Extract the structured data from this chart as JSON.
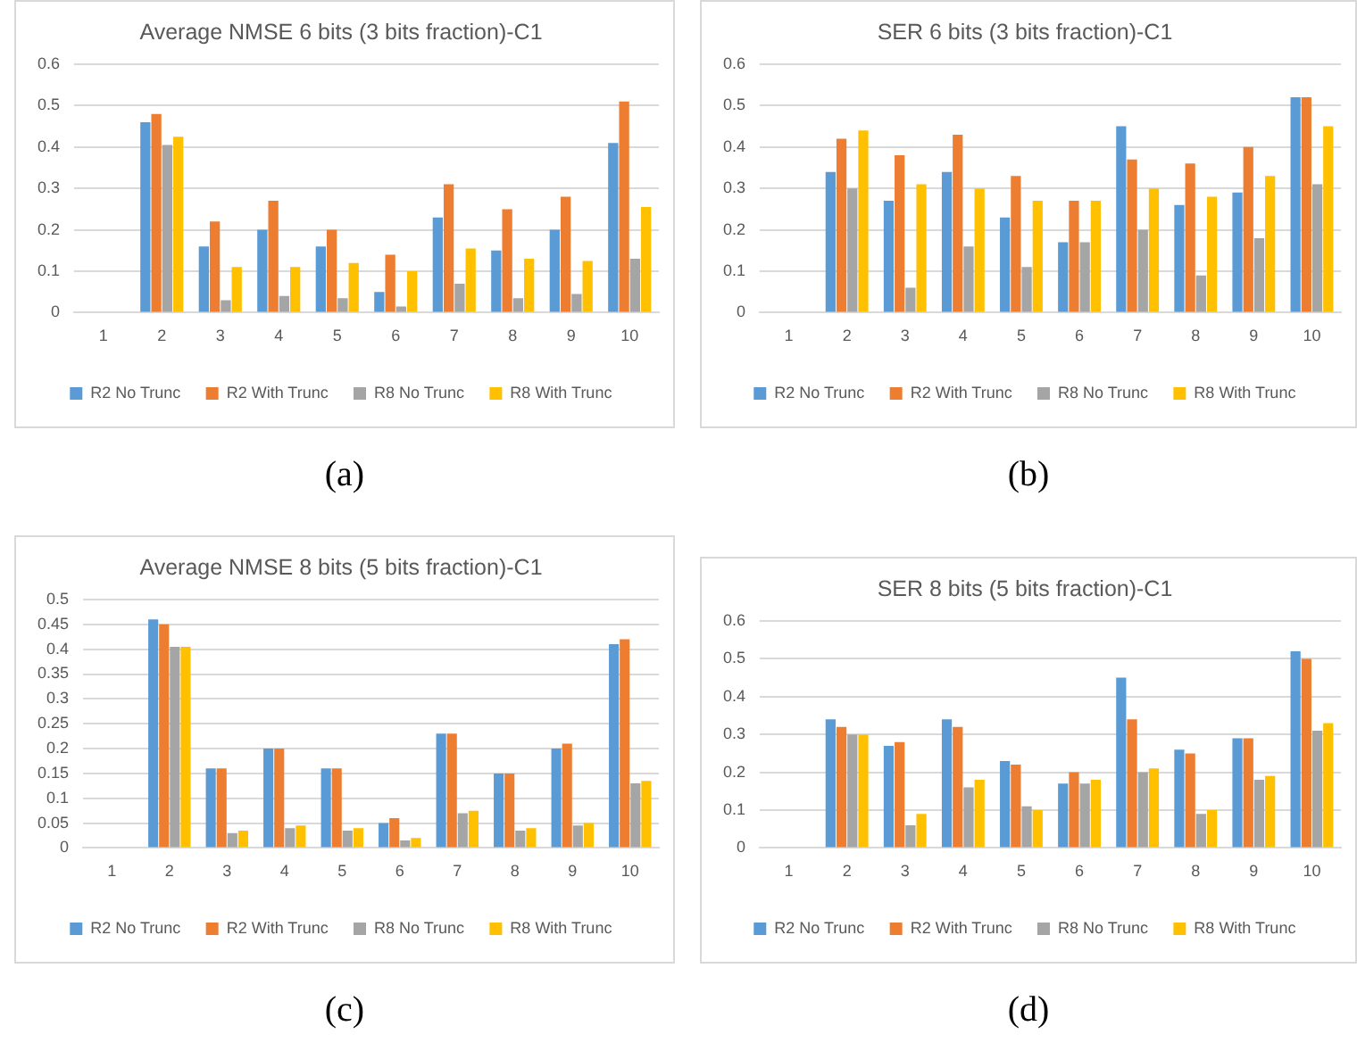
{
  "chart_data": [
    {
      "type": "bar",
      "title": "Average NMSE 6 bits (3 bits fraction)-C1",
      "annotations": [
        "(a)"
      ],
      "categories": [
        "1",
        "2",
        "3",
        "4",
        "5",
        "6",
        "7",
        "8",
        "9",
        "10"
      ],
      "ylim": [
        0,
        0.6
      ],
      "yticks": [
        0,
        0.1,
        0.2,
        0.3,
        0.4,
        0.5,
        0.6
      ],
      "grid": "y",
      "legend": "bottom",
      "series": [
        {
          "name": "R2 No Trunc",
          "color": "#5b9bd5",
          "values": [
            0,
            0.46,
            0.16,
            0.2,
            0.16,
            0.05,
            0.23,
            0.15,
            0.2,
            0.41
          ]
        },
        {
          "name": "R2 With Trunc",
          "color": "#ed7d31",
          "values": [
            0,
            0.48,
            0.22,
            0.27,
            0.2,
            0.14,
            0.31,
            0.25,
            0.28,
            0.51
          ]
        },
        {
          "name": "R8 No Trunc",
          "color": "#a5a5a5",
          "values": [
            0,
            0.405,
            0.03,
            0.04,
            0.035,
            0.015,
            0.07,
            0.035,
            0.045,
            0.13
          ]
        },
        {
          "name": "R8 With Trunc",
          "color": "#ffc000",
          "values": [
            0,
            0.425,
            0.11,
            0.11,
            0.12,
            0.1,
            0.155,
            0.13,
            0.125,
            0.255
          ]
        }
      ]
    },
    {
      "type": "bar",
      "title": "SER 6 bits (3 bits fraction)-C1",
      "annotations": [
        "(b)"
      ],
      "categories": [
        "1",
        "2",
        "3",
        "4",
        "5",
        "6",
        "7",
        "8",
        "9",
        "10"
      ],
      "ylim": [
        0,
        0.6
      ],
      "yticks": [
        0,
        0.1,
        0.2,
        0.3,
        0.4,
        0.5,
        0.6
      ],
      "grid": "y",
      "legend": "bottom",
      "series": [
        {
          "name": "R2 No Trunc",
          "color": "#5b9bd5",
          "values": [
            0,
            0.34,
            0.27,
            0.34,
            0.23,
            0.17,
            0.45,
            0.26,
            0.29,
            0.52
          ]
        },
        {
          "name": "R2 With Trunc",
          "color": "#ed7d31",
          "values": [
            0,
            0.42,
            0.38,
            0.43,
            0.33,
            0.27,
            0.37,
            0.36,
            0.4,
            0.52
          ]
        },
        {
          "name": "R8 No Trunc",
          "color": "#a5a5a5",
          "values": [
            0,
            0.3,
            0.06,
            0.16,
            0.11,
            0.17,
            0.2,
            0.09,
            0.18,
            0.31
          ]
        },
        {
          "name": "R8 With Trunc",
          "color": "#ffc000",
          "values": [
            0,
            0.44,
            0.31,
            0.3,
            0.27,
            0.27,
            0.3,
            0.28,
            0.33,
            0.45
          ]
        }
      ]
    },
    {
      "type": "bar",
      "title": "Average NMSE 8 bits (5 bits fraction)-C1",
      "annotations": [
        "(c)"
      ],
      "categories": [
        "1",
        "2",
        "3",
        "4",
        "5",
        "6",
        "7",
        "8",
        "9",
        "10"
      ],
      "ylim": [
        0,
        0.5
      ],
      "yticks": [
        0,
        0.05,
        0.1,
        0.15,
        0.2,
        0.25,
        0.3,
        0.35,
        0.4,
        0.45,
        0.5
      ],
      "grid": "y",
      "legend": "bottom",
      "series": [
        {
          "name": "R2 No Trunc",
          "color": "#5b9bd5",
          "values": [
            0,
            0.46,
            0.16,
            0.2,
            0.16,
            0.05,
            0.23,
            0.15,
            0.2,
            0.41
          ]
        },
        {
          "name": "R2 With Trunc",
          "color": "#ed7d31",
          "values": [
            0,
            0.45,
            0.16,
            0.2,
            0.16,
            0.06,
            0.23,
            0.15,
            0.21,
            0.42
          ]
        },
        {
          "name": "R8 No Trunc",
          "color": "#a5a5a5",
          "values": [
            0,
            0.405,
            0.03,
            0.04,
            0.035,
            0.015,
            0.07,
            0.035,
            0.045,
            0.13
          ]
        },
        {
          "name": "R8 With Trunc",
          "color": "#ffc000",
          "values": [
            0,
            0.405,
            0.035,
            0.045,
            0.04,
            0.02,
            0.075,
            0.04,
            0.05,
            0.135
          ]
        }
      ]
    },
    {
      "type": "bar",
      "title": "SER 8 bits (5 bits fraction)-C1",
      "annotations": [
        "(d)"
      ],
      "categories": [
        "1",
        "2",
        "3",
        "4",
        "5",
        "6",
        "7",
        "8",
        "9",
        "10"
      ],
      "ylim": [
        0,
        0.6
      ],
      "yticks": [
        0,
        0.1,
        0.2,
        0.3,
        0.4,
        0.5,
        0.6
      ],
      "grid": "y",
      "legend": "bottom",
      "series": [
        {
          "name": "R2 No Trunc",
          "color": "#5b9bd5",
          "values": [
            0,
            0.34,
            0.27,
            0.34,
            0.23,
            0.17,
            0.45,
            0.26,
            0.29,
            0.52
          ]
        },
        {
          "name": "R2 With Trunc",
          "color": "#ed7d31",
          "values": [
            0,
            0.32,
            0.28,
            0.32,
            0.22,
            0.2,
            0.34,
            0.25,
            0.29,
            0.5
          ]
        },
        {
          "name": "R8 No Trunc",
          "color": "#a5a5a5",
          "values": [
            0,
            0.3,
            0.06,
            0.16,
            0.11,
            0.17,
            0.2,
            0.09,
            0.18,
            0.31
          ]
        },
        {
          "name": "R8 With Trunc",
          "color": "#ffc000",
          "values": [
            0,
            0.3,
            0.09,
            0.18,
            0.1,
            0.18,
            0.21,
            0.1,
            0.19,
            0.33
          ]
        }
      ]
    }
  ]
}
